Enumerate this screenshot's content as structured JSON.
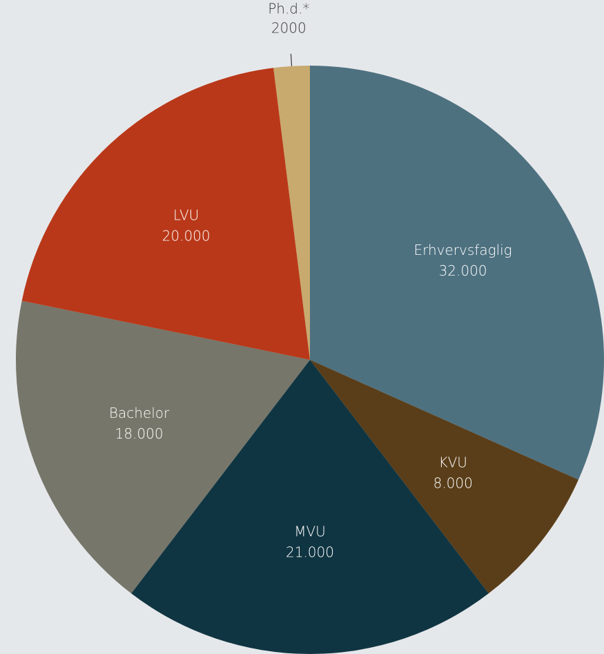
{
  "chart_data": {
    "type": "pie",
    "categories": [
      "Erhvervsfaglig",
      "KVU",
      "MVU",
      "Bachelor",
      "LVU",
      "Ph.d.*"
    ],
    "values": [
      32000,
      8000,
      21000,
      18000,
      20000,
      2000
    ],
    "value_labels": [
      "32.000",
      "8.000",
      "21.000",
      "18.000",
      "20.000",
      "2000"
    ],
    "colors": [
      "#4e7180",
      "#5a3e19",
      "#103542",
      "#76766a",
      "#b93819",
      "#c8a96e"
    ]
  }
}
